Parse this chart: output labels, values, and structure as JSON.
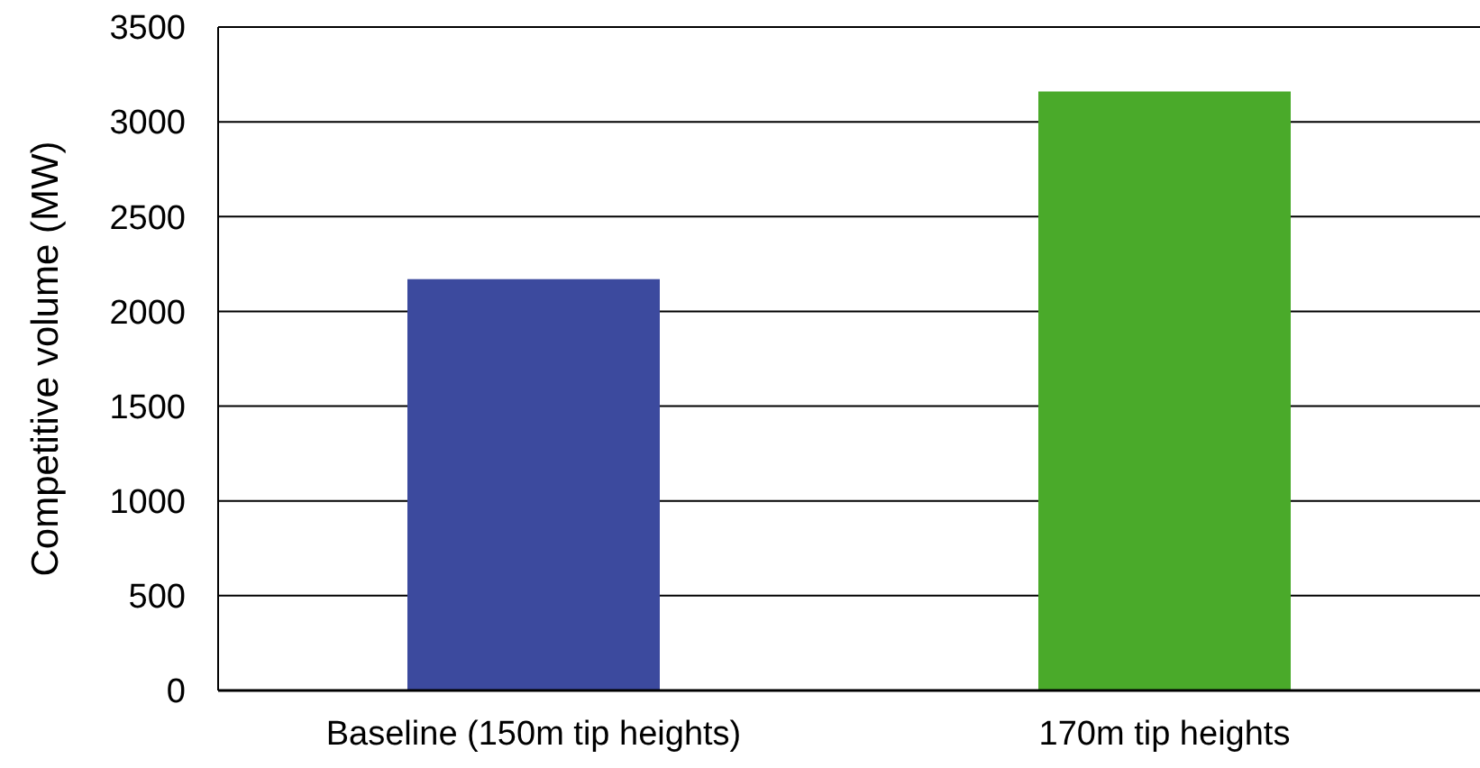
{
  "chart_data": {
    "type": "bar",
    "ylabel": "Competitive volume (MW)",
    "categories": [
      "Baseline (150m tip heights)",
      "170m tip heights"
    ],
    "values": [
      2170,
      3160
    ],
    "colors": [
      "#3c4a9e",
      "#4aaa2a"
    ],
    "ylim": [
      0,
      3500
    ],
    "yticks": [
      0,
      500,
      1000,
      1500,
      2000,
      2500,
      3000,
      3500
    ],
    "grid": "y"
  }
}
